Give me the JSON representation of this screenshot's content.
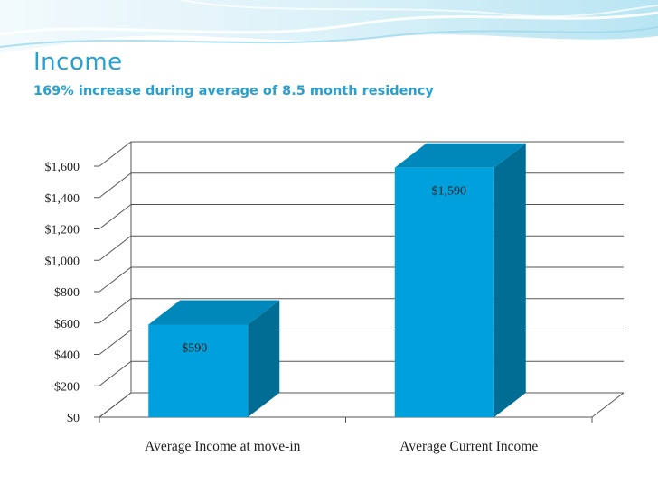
{
  "slide": {
    "title": "Income",
    "subtitle": "169% increase during average of 8.5 month residency"
  },
  "colors": {
    "accent": "#2aa0cf",
    "bar_front": "#00a0dc",
    "bar_side": "#006e94",
    "bar_top": "#0088ba",
    "gridline": "#555555",
    "text": "#222222"
  },
  "chart_data": {
    "type": "bar",
    "style": "3d-column",
    "categories": [
      "Average Income at move-in",
      "Average Current Income"
    ],
    "values": [
      590,
      1590
    ],
    "data_labels": [
      "$590",
      "$1,590"
    ],
    "y_tick_labels": [
      "$0",
      "$200",
      "$400",
      "$600",
      "$800",
      "$1,000",
      "$1,200",
      "$1,400",
      "$1,600"
    ],
    "ylim": [
      0,
      1600
    ],
    "y_tick_step": 200,
    "grid": true,
    "legend": "none",
    "xlabel": "",
    "ylabel": ""
  }
}
